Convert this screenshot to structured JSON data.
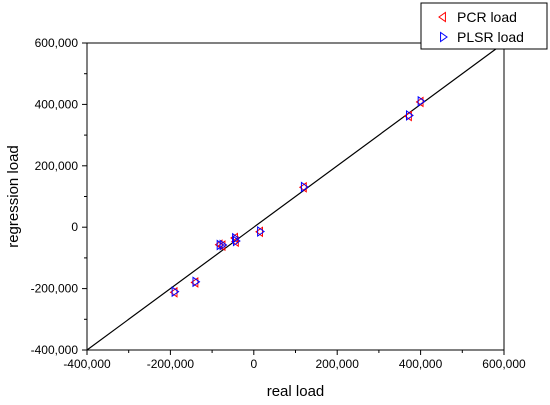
{
  "chart_data": {
    "type": "scatter",
    "title": "",
    "xlabel": "real load",
    "ylabel": "regression load",
    "xlim": [
      -400000,
      600000
    ],
    "ylim": [
      -400000,
      600000
    ],
    "x_ticks": [
      -400000,
      -200000,
      0,
      200000,
      400000,
      600000
    ],
    "x_tick_labels": [
      "-400,000",
      "-200,000",
      "0",
      "200,000",
      "400,000",
      "600,000"
    ],
    "y_ticks": [
      -400000,
      -200000,
      0,
      200000,
      400000,
      600000
    ],
    "y_tick_labels": [
      "-400,000",
      "-200,000",
      "0",
      "200,000",
      "400,000",
      "600,000"
    ],
    "grid": false,
    "legend_position": "top-right",
    "reference_line": {
      "type": "y=x"
    },
    "series": [
      {
        "name": "PCR load",
        "marker": "triangle-left",
        "color": "#ff0000",
        "points": [
          {
            "x": -190000,
            "y": -212000
          },
          {
            "x": -140000,
            "y": -180000
          },
          {
            "x": -82000,
            "y": -57000
          },
          {
            "x": -75000,
            "y": -60000
          },
          {
            "x": -45000,
            "y": -35000
          },
          {
            "x": -43000,
            "y": -47000
          },
          {
            "x": 15000,
            "y": -15000
          },
          {
            "x": 120000,
            "y": 130000
          },
          {
            "x": 372000,
            "y": 362000
          },
          {
            "x": 400000,
            "y": 408000
          }
        ]
      },
      {
        "name": "PLSR load",
        "marker": "triangle-right",
        "color": "#0000ff",
        "points": [
          {
            "x": -190000,
            "y": -210000
          },
          {
            "x": -140000,
            "y": -178000
          },
          {
            "x": -82000,
            "y": -58000
          },
          {
            "x": -75000,
            "y": -58000
          },
          {
            "x": -45000,
            "y": -36000
          },
          {
            "x": -43000,
            "y": -45000
          },
          {
            "x": 15000,
            "y": -14000
          },
          {
            "x": 120000,
            "y": 131000
          },
          {
            "x": 372000,
            "y": 364000
          },
          {
            "x": 400000,
            "y": 410000
          }
        ]
      }
    ]
  }
}
